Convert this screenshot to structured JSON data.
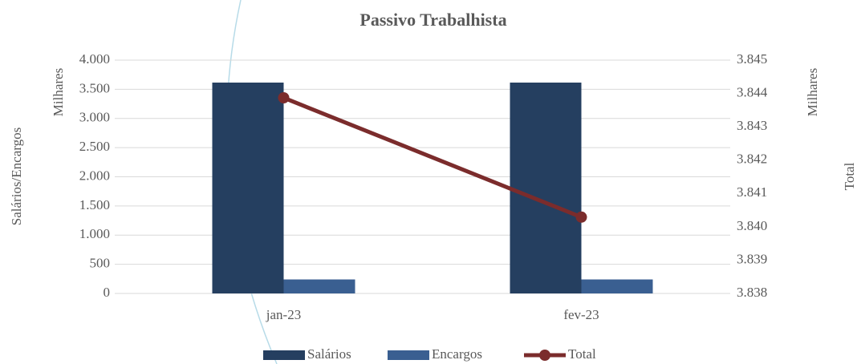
{
  "chart_data": {
    "type": "bar_line",
    "title": "Passivo Trabalhista",
    "ylabel": "Salários/Encargos",
    "yunit": "Milhares",
    "y2label": "Total",
    "y2unit": "Milhares",
    "categories": [
      "jan-23",
      "fev-23"
    ],
    "series": [
      {
        "name": "Salários",
        "color": "#253f60",
        "type": "bar",
        "values": [
          3615,
          3615
        ]
      },
      {
        "name": "Encargos",
        "color": "#3a5f91",
        "type": "bar",
        "values": [
          240,
          240
        ]
      },
      {
        "name": "Total",
        "color": "#7b2c2c",
        "type": "line",
        "axis": "y2",
        "values": [
          3843.87,
          3840.29
        ]
      }
    ],
    "ylim": [
      0,
      4000
    ],
    "yticks": [
      0,
      500,
      {
        "value": 1000,
        "label": "1.000"
      },
      {
        "value": 1500,
        "label": "1.500"
      },
      {
        "value": 2000,
        "label": "2.000"
      },
      {
        "value": 2500,
        "label": "2.500"
      },
      {
        "value": 3000,
        "label": "3.000"
      },
      {
        "value": 3500,
        "label": "3.500"
      },
      {
        "value": 4000,
        "label": "4.000"
      }
    ],
    "y2lim": [
      3838,
      3845
    ],
    "y2ticks": [
      {
        "value": 3838,
        "label": "3.838"
      },
      {
        "value": 3839,
        "label": "3.839"
      },
      {
        "value": 3840,
        "label": "3.840"
      },
      {
        "value": 3841,
        "label": "3.841"
      },
      {
        "value": 3842,
        "label": "3.842"
      },
      {
        "value": 3843,
        "label": "3.843"
      },
      {
        "value": 3844,
        "label": "3.844"
      },
      {
        "value": 3845,
        "label": "3.845"
      }
    ],
    "grid": true,
    "legend": "bottom"
  }
}
